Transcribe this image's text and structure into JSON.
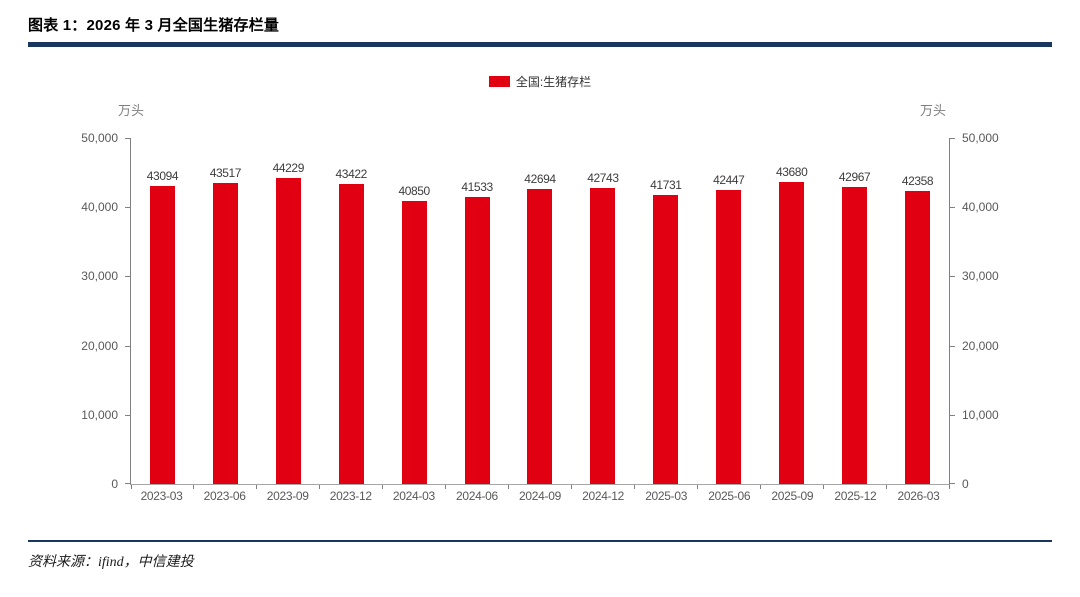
{
  "header": {
    "title": "图表 1：2026 年 3 月全国生猪存栏量"
  },
  "legend": {
    "label": "全国:生猪存栏",
    "swatch_color": "#E00012"
  },
  "axes": {
    "left_unit": "万头",
    "right_unit": "万头"
  },
  "chart_data": {
    "type": "bar",
    "title": "全国:生猪存栏",
    "categories": [
      "2023-03",
      "2023-06",
      "2023-09",
      "2023-12",
      "2024-03",
      "2024-06",
      "2024-09",
      "2024-12",
      "2025-03",
      "2025-06",
      "2025-09",
      "2025-12",
      "2026-03"
    ],
    "values": [
      43094,
      43517,
      44229,
      43422,
      40850,
      41533,
      42694,
      42743,
      41731,
      42447,
      43680,
      42967,
      42358
    ],
    "xlabel": "",
    "ylabel": "万头",
    "ylim": [
      0,
      50000
    ],
    "yticks": [
      {
        "value": 0,
        "label": "0"
      },
      {
        "value": 10000,
        "label": "10,000"
      },
      {
        "value": 20000,
        "label": "20,000"
      },
      {
        "value": 30000,
        "label": "30,000"
      },
      {
        "value": 40000,
        "label": "40,000"
      },
      {
        "value": 50000,
        "label": "50,000"
      }
    ],
    "bar_color": "#E00012",
    "grid": false,
    "value_labels": true,
    "legend_position": "top-center",
    "dual_y_axis": true
  },
  "footer": {
    "source": "资料来源：ifind，中信建投"
  },
  "colors": {
    "accent_red": "#E00012",
    "rule_navy": "#17375E",
    "axis_gray": "#808080",
    "tick_label_gray": "#595959",
    "value_label_gray": "#3d3d3d"
  }
}
